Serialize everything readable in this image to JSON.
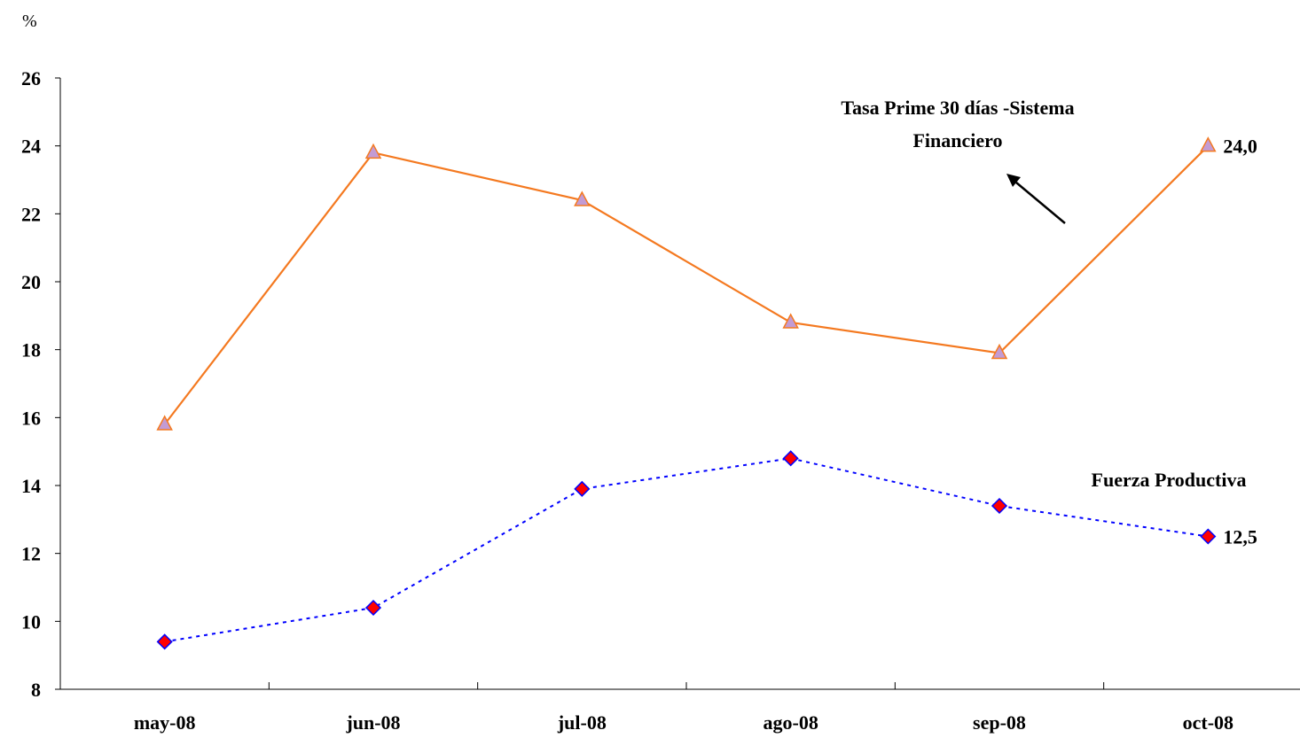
{
  "chart_data": {
    "type": "line",
    "unit_label": "%",
    "categories": [
      "may-08",
      "jun-08",
      "jul-08",
      "ago-08",
      "sep-08",
      "oct-08"
    ],
    "ylim": [
      8,
      26
    ],
    "yticks": [
      8,
      10,
      12,
      14,
      16,
      18,
      20,
      22,
      24,
      26
    ],
    "grid": false,
    "series": [
      {
        "name": "Tasa Prime 30 días -Sistema Financiero",
        "name_lines": [
          "Tasa Prime 30 días -Sistema",
          "Financiero"
        ],
        "values": [
          15.8,
          23.8,
          22.4,
          18.8,
          17.9,
          24.0
        ],
        "line_color": "#f47920",
        "marker": "triangle",
        "marker_fill": "#c39bd3",
        "marker_stroke": "#f47920",
        "dashed": false,
        "end_label": "24,0"
      },
      {
        "name": "Fuerza Productiva",
        "name_lines": [
          "Fuerza Productiva"
        ],
        "values": [
          9.4,
          10.4,
          13.9,
          14.8,
          13.4,
          12.5
        ],
        "line_color": "#0000ff",
        "marker": "diamond",
        "marker_fill": "#ff0000",
        "marker_stroke": "#0000ff",
        "dashed": true,
        "end_label": "12,5"
      }
    ]
  }
}
